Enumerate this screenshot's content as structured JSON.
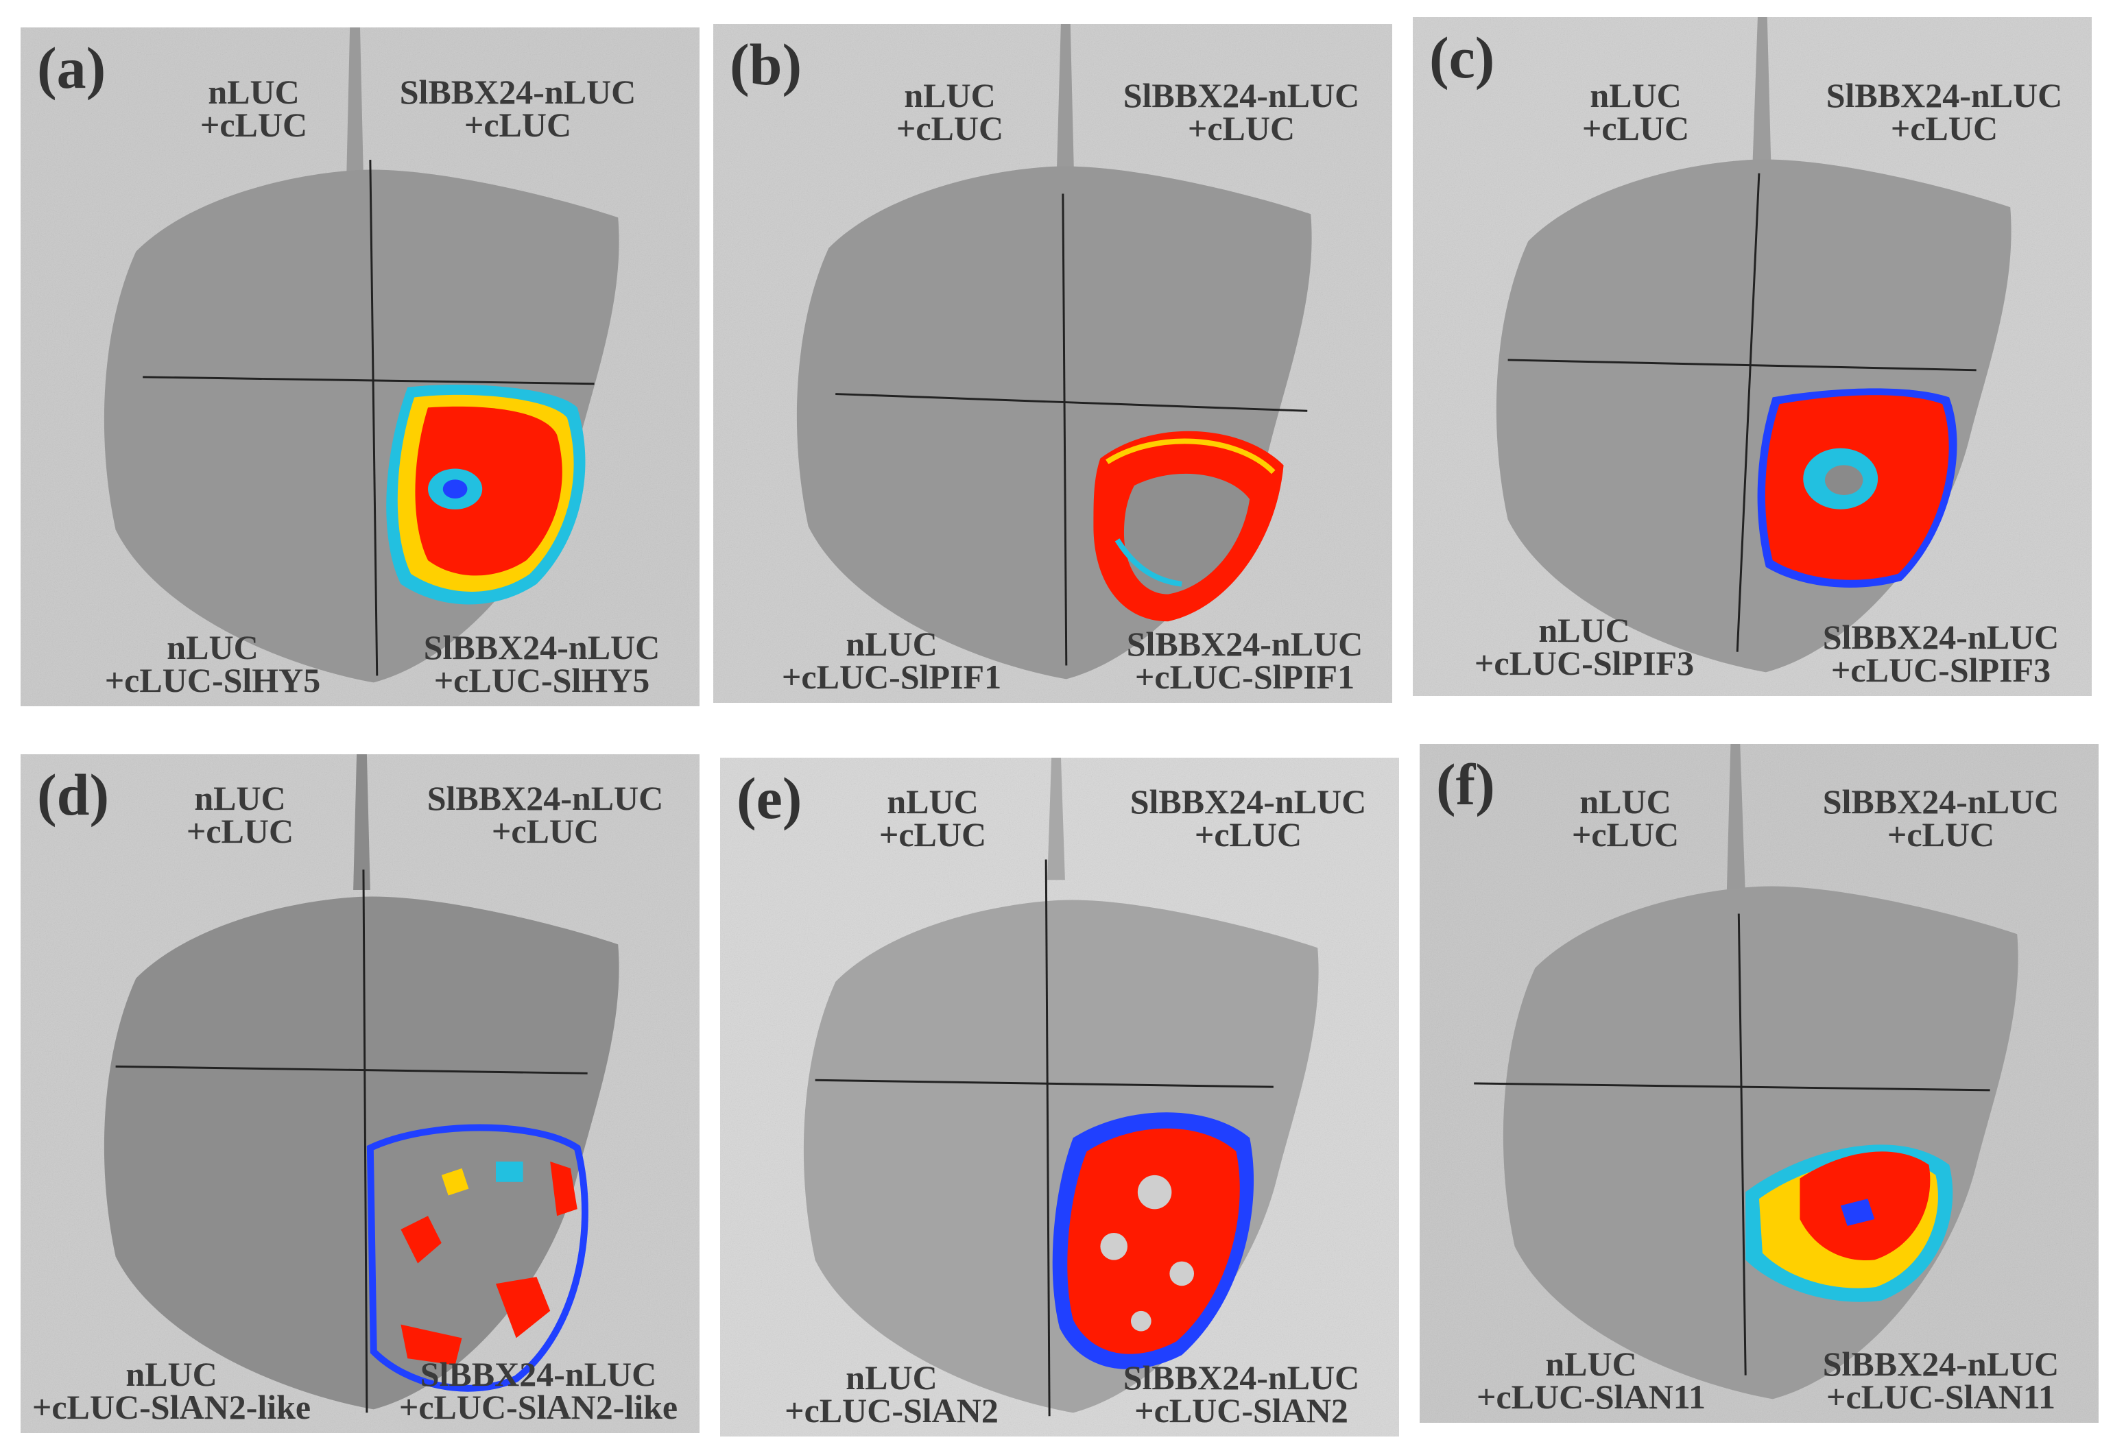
{
  "panels": [
    {
      "letter": "(a)",
      "tl": [
        "nLUC",
        "+cLUC"
      ],
      "tr": [
        "SlBBX24-nLUC",
        "+cLUC"
      ],
      "bl": [
        "nLUC",
        "+cLUC-SlHY5"
      ],
      "br": [
        "SlBBX24-nLUC",
        "+cLUC-SlHY5"
      ]
    },
    {
      "letter": "(b)",
      "tl": [
        "nLUC",
        "+cLUC"
      ],
      "tr": [
        "SlBBX24-nLUC",
        "+cLUC"
      ],
      "bl": [
        "nLUC",
        "+cLUC-SlPIF1"
      ],
      "br": [
        "SlBBX24-nLUC",
        "+cLUC-SlPIF1"
      ]
    },
    {
      "letter": "(c)",
      "tl": [
        "nLUC",
        "+cLUC"
      ],
      "tr": [
        "SlBBX24-nLUC",
        "+cLUC"
      ],
      "bl": [
        "nLUC",
        "+cLUC-SlPIF3"
      ],
      "br": [
        "SlBBX24-nLUC",
        "+cLUC-SlPIF3"
      ]
    },
    {
      "letter": "(d)",
      "tl": [
        "nLUC",
        "+cLUC"
      ],
      "tr": [
        "SlBBX24-nLUC",
        "+cLUC"
      ],
      "bl": [
        "nLUC",
        "+cLUC-SlAN2-like"
      ],
      "br": [
        "SlBBX24-nLUC",
        "+cLUC-SlAN2-like"
      ]
    },
    {
      "letter": "(e)",
      "tl": [
        "nLUC",
        "+cLUC"
      ],
      "tr": [
        "SlBBX24-nLUC",
        "+cLUC"
      ],
      "bl": [
        "nLUC",
        "+cLUC-SlAN2"
      ],
      "br": [
        "SlBBX24-nLUC",
        "+cLUC-SlAN2"
      ]
    },
    {
      "letter": "(f)",
      "tl": [
        "nLUC",
        "+cLUC"
      ],
      "tr": [
        "SlBBX24-nLUC",
        "+cLUC"
      ],
      "bl": [
        "nLUC",
        "+cLUC-SlAN11"
      ],
      "br": [
        "SlBBX24-nLUC",
        "+cLUC-SlAN11"
      ]
    }
  ],
  "colors": {
    "signal_high": "#ff1a00",
    "signal_mid": "#ffd000",
    "signal_low": "#22c0e0",
    "signal_edge": "#2040ff",
    "leaf": "#8f8f8f",
    "background": "#c9c9c9",
    "label": "#3a3a3a"
  }
}
